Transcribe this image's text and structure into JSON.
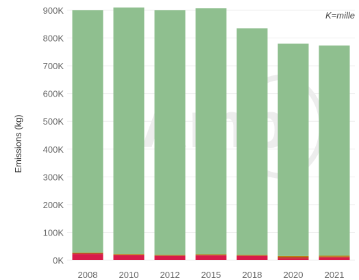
{
  "chart_data": {
    "type": "bar",
    "stacked": true,
    "title": "",
    "xlabel": "",
    "ylabel": "Emissions (kg)",
    "annotation": "K=mille",
    "ylim": [
      0,
      900000
    ],
    "yticks": [
      0,
      100000,
      200000,
      300000,
      400000,
      500000,
      600000,
      700000,
      800000,
      900000
    ],
    "ytick_labels": [
      "0K",
      "100K",
      "200K",
      "300K",
      "400K",
      "500K",
      "600K",
      "700K",
      "800K",
      "900K"
    ],
    "categories": [
      "2008",
      "2010",
      "2012",
      "2015",
      "2018",
      "2020",
      "2021"
    ],
    "grid": true,
    "series": [
      {
        "color": "#d81b4a",
        "values": [
          22000,
          18000,
          15000,
          17000,
          15000,
          6000,
          9000
        ]
      },
      {
        "color": "#c0392b",
        "values": [
          3000,
          2000,
          2000,
          2000,
          2000,
          6000,
          4000
        ]
      },
      {
        "color": "#b8860b",
        "values": [
          2000,
          2000,
          2000,
          2000,
          2000,
          3000,
          3000
        ]
      },
      {
        "color": "#8fbf8f",
        "values": [
          873000,
          888000,
          881000,
          886000,
          816000,
          765000,
          757000
        ]
      }
    ]
  }
}
